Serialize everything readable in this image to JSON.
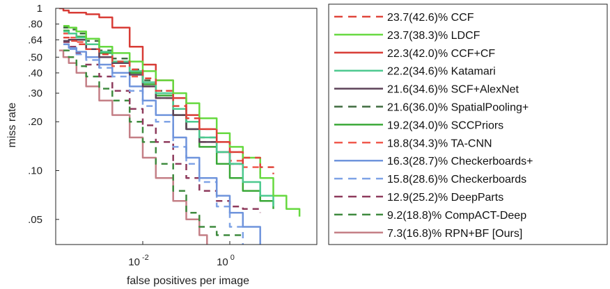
{
  "chart_data": {
    "type": "line",
    "xlabel": "false positives per image",
    "ylabel": "miss rate",
    "x_scale": "log",
    "y_scale": "log",
    "xlim": [
      0.0001,
      100
    ],
    "ylim": [
      0.035,
      1
    ],
    "x_ticks": [
      {
        "value": 0.01,
        "base": "10",
        "exp": "-2"
      },
      {
        "value": 1,
        "base": "10",
        "exp": "0"
      }
    ],
    "y_ticks": [
      {
        "value": 1,
        "label": "1"
      },
      {
        "value": 0.8,
        "label": ".80"
      },
      {
        "value": 0.64,
        "label": ".64"
      },
      {
        "value": 0.5,
        "label": ".50"
      },
      {
        "value": 0.4,
        "label": ".40"
      },
      {
        "value": 0.3,
        "label": ".30"
      },
      {
        "value": 0.2,
        "label": ".20"
      },
      {
        "value": 0.1,
        "label": ".10"
      },
      {
        "value": 0.05,
        "label": ".05"
      }
    ],
    "legend_position": "right",
    "series": [
      {
        "name": "23.7(42.6)% CCF",
        "color": "#e0453b",
        "dash": "dashed",
        "x": [
          0.00015,
          0.0002,
          0.0003,
          0.0005,
          0.001,
          0.002,
          0.005,
          0.01,
          0.02,
          0.05,
          0.1,
          0.2,
          0.5,
          1,
          2,
          5,
          10
        ],
        "y": [
          0.66,
          0.63,
          0.6,
          0.56,
          0.52,
          0.47,
          0.42,
          0.37,
          0.31,
          0.25,
          0.21,
          0.18,
          0.15,
          0.13,
          0.12,
          0.105,
          0.095
        ]
      },
      {
        "name": "23.7(38.3)% LDCF",
        "color": "#66d93f",
        "dash": "solid",
        "x": [
          0.00015,
          0.0002,
          0.0003,
          0.0005,
          0.001,
          0.002,
          0.005,
          0.01,
          0.02,
          0.05,
          0.1,
          0.2,
          0.5,
          1,
          2,
          5,
          10,
          20,
          40
        ],
        "y": [
          0.78,
          0.76,
          0.72,
          0.65,
          0.58,
          0.53,
          0.47,
          0.41,
          0.36,
          0.3,
          0.26,
          0.21,
          0.17,
          0.14,
          0.12,
          0.09,
          0.07,
          0.058,
          0.052
        ]
      },
      {
        "name": "22.3(42.0)% CCF+CF",
        "color": "#d83c36",
        "dash": "solid",
        "x": [
          0.00012,
          0.00015,
          0.0002,
          0.0005,
          0.001,
          0.002,
          0.005,
          0.01,
          0.02,
          0.05,
          0.1,
          0.2,
          0.5,
          1,
          2
        ],
        "y": [
          1.0,
          0.97,
          0.94,
          0.92,
          0.88,
          0.76,
          0.58,
          0.45,
          0.36,
          0.28,
          0.22,
          0.18,
          0.15,
          0.13,
          0.11
        ]
      },
      {
        "name": "22.2(34.6)% Katamari",
        "color": "#4cc98f",
        "dash": "solid",
        "x": [
          0.00015,
          0.0002,
          0.0003,
          0.0005,
          0.001,
          0.002,
          0.005,
          0.01,
          0.02,
          0.05,
          0.1,
          0.2,
          0.5,
          1,
          2,
          5,
          10
        ],
        "y": [
          0.72,
          0.7,
          0.66,
          0.6,
          0.54,
          0.47,
          0.41,
          0.35,
          0.3,
          0.24,
          0.2,
          0.16,
          0.13,
          0.11,
          0.085,
          0.07,
          0.06
        ]
      },
      {
        "name": "21.6(34.6)% SCF+AlexNet",
        "color": "#5c4258",
        "dash": "solid",
        "x": [
          0.00015,
          0.0002,
          0.0003,
          0.0005,
          0.001,
          0.002,
          0.005,
          0.01,
          0.02,
          0.05,
          0.1,
          0.2,
          0.5,
          1,
          2
        ],
        "y": [
          0.63,
          0.64,
          0.64,
          0.56,
          0.5,
          0.46,
          0.39,
          0.33,
          0.28,
          0.22,
          0.18,
          0.15,
          0.13,
          0.11,
          0.1
        ]
      },
      {
        "name": "21.6(36.0)% SpatialPooling+",
        "color": "#3f6b3f",
        "dash": "dashed",
        "x": [
          0.00015,
          0.0002,
          0.0003,
          0.0005,
          0.001,
          0.002,
          0.005,
          0.01,
          0.02,
          0.05,
          0.1,
          0.2,
          0.5,
          1,
          2
        ],
        "y": [
          0.76,
          0.74,
          0.7,
          0.63,
          0.55,
          0.49,
          0.42,
          0.36,
          0.31,
          0.24,
          0.2,
          0.16,
          0.13,
          0.11,
          0.1
        ]
      },
      {
        "name": "19.2(34.0)% SCCPriors",
        "color": "#3aa837",
        "dash": "solid",
        "x": [
          0.00015,
          0.0002,
          0.0003,
          0.0005,
          0.001,
          0.002,
          0.005,
          0.01,
          0.02,
          0.05,
          0.1,
          0.2,
          0.5,
          1,
          2,
          5,
          10
        ],
        "y": [
          0.73,
          0.7,
          0.67,
          0.6,
          0.53,
          0.47,
          0.4,
          0.34,
          0.29,
          0.22,
          0.18,
          0.14,
          0.11,
          0.09,
          0.075,
          0.065,
          0.058
        ]
      },
      {
        "name": "18.8(34.3)% TA-CNN",
        "color": "#f05a4e",
        "dash": "dashed",
        "x": [
          0.00015,
          0.0002,
          0.0003,
          0.0005,
          0.001,
          0.002,
          0.005,
          0.01,
          0.02,
          0.05,
          0.1,
          0.2,
          0.5,
          1,
          2,
          5
        ],
        "y": [
          0.7,
          0.66,
          0.62,
          0.56,
          0.5,
          0.44,
          0.38,
          0.33,
          0.28,
          0.22,
          0.18,
          0.15,
          0.13,
          0.115,
          0.105,
          0.095
        ]
      },
      {
        "name": "16.3(28.7)% Checkerboards+",
        "color": "#6f94dc",
        "dash": "solid",
        "x": [
          0.00015,
          0.0002,
          0.0003,
          0.0005,
          0.001,
          0.002,
          0.005,
          0.01,
          0.02,
          0.05,
          0.1,
          0.2,
          0.5,
          1,
          2,
          5
        ],
        "y": [
          0.6,
          0.57,
          0.54,
          0.5,
          0.45,
          0.4,
          0.33,
          0.27,
          0.22,
          0.16,
          0.12,
          0.09,
          0.07,
          0.055,
          0.045,
          0.035
        ]
      },
      {
        "name": "15.8(28.6)% Checkerboards",
        "color": "#7fa3e6",
        "dash": "dashed",
        "x": [
          0.00015,
          0.0002,
          0.0003,
          0.0005,
          0.001,
          0.002,
          0.005,
          0.01,
          0.02,
          0.05,
          0.1,
          0.2,
          0.5,
          1,
          2
        ],
        "y": [
          0.6,
          0.56,
          0.52,
          0.48,
          0.43,
          0.38,
          0.31,
          0.25,
          0.2,
          0.14,
          0.11,
          0.085,
          0.06,
          0.045,
          0.035
        ]
      },
      {
        "name": "12.9(25.2)% DeepParts",
        "color": "#8e3a5c",
        "dash": "dashed",
        "x": [
          0.00015,
          0.0002,
          0.0003,
          0.0005,
          0.001,
          0.002,
          0.005,
          0.01,
          0.02,
          0.05,
          0.1,
          0.2,
          0.5,
          1,
          2,
          5
        ],
        "y": [
          0.62,
          0.58,
          0.53,
          0.45,
          0.38,
          0.31,
          0.24,
          0.19,
          0.15,
          0.11,
          0.09,
          0.075,
          0.065,
          0.06,
          0.058,
          0.055
        ]
      },
      {
        "name": "9.2(18.8)% CompACT-Deep",
        "color": "#3e8a3e",
        "dash": "dashed",
        "x": [
          0.00015,
          0.0002,
          0.0003,
          0.0005,
          0.001,
          0.002,
          0.005,
          0.01,
          0.02,
          0.05,
          0.1,
          0.2,
          0.5,
          1,
          2
        ],
        "y": [
          0.55,
          0.5,
          0.44,
          0.38,
          0.32,
          0.27,
          0.2,
          0.15,
          0.11,
          0.075,
          0.055,
          0.045,
          0.04,
          0.04,
          0.04
        ]
      },
      {
        "name": "7.3(16.8)% RPN+BF [Ours]",
        "color": "#c47f86",
        "dash": "solid",
        "x": [
          0.00012,
          0.00015,
          0.0002,
          0.0003,
          0.0005,
          0.001,
          0.002,
          0.005,
          0.01,
          0.02,
          0.05,
          0.1,
          0.2,
          0.3
        ],
        "y": [
          0.55,
          0.5,
          0.46,
          0.4,
          0.33,
          0.27,
          0.22,
          0.16,
          0.12,
          0.09,
          0.065,
          0.05,
          0.04,
          0.035
        ]
      }
    ]
  }
}
